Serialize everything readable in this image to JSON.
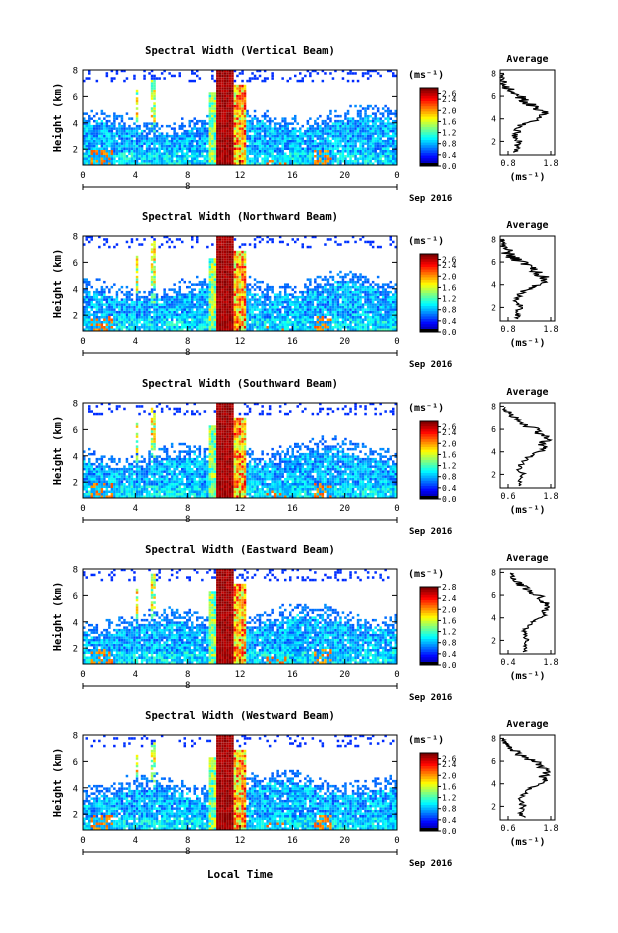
{
  "page": {
    "bottom_xlabel": "Local Time"
  },
  "chart_data": [
    {
      "type": "heatmap",
      "title": "Spectral Width (Vertical Beam)",
      "ylabel": "Height (km)",
      "xticks": [
        "0",
        "4",
        "8",
        "12",
        "16",
        "20",
        "0"
      ],
      "date_tick": "8",
      "date_label": "Sep 2016",
      "xlim": [
        0,
        24
      ],
      "ylim": [
        0.8,
        8
      ],
      "yticks": [
        "2",
        "4",
        "6",
        "8"
      ],
      "colorbar": {
        "unit": "(ms⁻¹)",
        "ticks": [
          "2.6",
          "2.4",
          "2.0",
          "1.6",
          "1.2",
          "0.8",
          "0.4",
          "0.0"
        ],
        "range": [
          0.0,
          2.8
        ]
      },
      "average": {
        "title": "Average",
        "xticks": [
          "0.8",
          "1.8"
        ],
        "xlim": [
          0.8,
          1.8
        ],
        "xlabel": "(ms⁻¹)",
        "yticks": [
          "2",
          "4",
          "6",
          "8"
        ],
        "profile": [
          [
            1.12,
            1.0
          ],
          [
            1.1,
            1.5
          ],
          [
            1.15,
            2.0
          ],
          [
            1.08,
            2.5
          ],
          [
            1.12,
            3.0
          ],
          [
            1.2,
            3.5
          ],
          [
            1.4,
            3.8
          ],
          [
            1.58,
            4.2
          ],
          [
            1.6,
            4.6
          ],
          [
            1.45,
            5.0
          ],
          [
            1.3,
            5.4
          ],
          [
            1.2,
            5.8
          ],
          [
            1.05,
            6.2
          ],
          [
            0.95,
            6.6
          ],
          [
            0.88,
            7.0
          ],
          [
            0.86,
            7.5
          ],
          [
            0.85,
            8.0
          ]
        ]
      }
    },
    {
      "type": "heatmap",
      "title": "Spectral Width (Northward Beam)",
      "ylabel": "Height (km)",
      "xticks": [
        "0",
        "4",
        "8",
        "12",
        "16",
        "20",
        "0"
      ],
      "date_tick": "8",
      "date_label": "Sep 2016",
      "xlim": [
        0,
        24
      ],
      "ylim": [
        0.8,
        8
      ],
      "yticks": [
        "2",
        "4",
        "6",
        "8"
      ],
      "colorbar": {
        "unit": "(ms⁻¹)",
        "ticks": [
          "2.6",
          "2.4",
          "2.0",
          "1.6",
          "1.2",
          "0.8",
          "0.4",
          "0.0"
        ],
        "range": [
          0.0,
          2.8
        ]
      },
      "average": {
        "title": "Average",
        "xticks": [
          "0.8",
          "1.8"
        ],
        "xlim": [
          0.8,
          1.8
        ],
        "xlabel": "(ms⁻¹)",
        "yticks": [
          "2",
          "4",
          "6",
          "8"
        ],
        "profile": [
          [
            1.15,
            1.0
          ],
          [
            1.1,
            1.5
          ],
          [
            1.18,
            2.0
          ],
          [
            1.1,
            2.5
          ],
          [
            1.15,
            3.0
          ],
          [
            1.25,
            3.5
          ],
          [
            1.45,
            3.9
          ],
          [
            1.62,
            4.3
          ],
          [
            1.58,
            4.7
          ],
          [
            1.48,
            5.1
          ],
          [
            1.35,
            5.5
          ],
          [
            1.25,
            5.9
          ],
          [
            1.05,
            6.3
          ],
          [
            0.95,
            6.7
          ],
          [
            0.9,
            7.2
          ],
          [
            0.86,
            7.6
          ],
          [
            0.85,
            8.0
          ]
        ]
      }
    },
    {
      "type": "heatmap",
      "title": "Spectral Width (Southward Beam)",
      "ylabel": "Height (km)",
      "xticks": [
        "0",
        "4",
        "8",
        "12",
        "16",
        "20",
        "0"
      ],
      "date_tick": "8",
      "date_label": "Sep 2016",
      "xlim": [
        0,
        24
      ],
      "ylim": [
        0.8,
        8
      ],
      "yticks": [
        "2",
        "4",
        "6",
        "8"
      ],
      "colorbar": {
        "unit": "(ms⁻¹)",
        "ticks": [
          "2.6",
          "2.4",
          "2.0",
          "1.6",
          "1.2",
          "0.8",
          "0.4",
          "0.0"
        ],
        "range": [
          0.0,
          2.8
        ]
      },
      "average": {
        "title": "Average",
        "xticks": [
          "0.6",
          "1.8"
        ],
        "xlim": [
          0.6,
          1.8
        ],
        "xlabel": "(ms⁻¹)",
        "yticks": [
          "2",
          "4",
          "6",
          "8"
        ],
        "profile": [
          [
            1.05,
            1.0
          ],
          [
            1.0,
            1.5
          ],
          [
            1.1,
            2.0
          ],
          [
            1.02,
            2.5
          ],
          [
            1.08,
            3.0
          ],
          [
            1.2,
            3.5
          ],
          [
            1.4,
            3.9
          ],
          [
            1.6,
            4.3
          ],
          [
            1.55,
            4.7
          ],
          [
            1.65,
            5.1
          ],
          [
            1.5,
            5.5
          ],
          [
            1.45,
            5.9
          ],
          [
            1.2,
            6.3
          ],
          [
            1.0,
            6.8
          ],
          [
            0.85,
            7.2
          ],
          [
            0.75,
            7.6
          ],
          [
            0.7,
            8.0
          ]
        ]
      }
    },
    {
      "type": "heatmap",
      "title": "Spectral Width (Eastward Beam)",
      "ylabel": "Height (km)",
      "xticks": [
        "0",
        "4",
        "8",
        "12",
        "16",
        "20",
        "0"
      ],
      "date_tick": "8",
      "date_label": "Sep 2016",
      "xlim": [
        0,
        24
      ],
      "ylim": [
        0.8,
        8
      ],
      "yticks": [
        "2",
        "4",
        "6",
        "8"
      ],
      "colorbar": {
        "unit": "(ms⁻¹)",
        "ticks": [
          "2.8",
          "2.4",
          "2.0",
          "1.6",
          "1.2",
          "0.8",
          "0.4",
          "0.0"
        ],
        "range": [
          0.0,
          2.8
        ]
      },
      "average": {
        "title": "Average",
        "xticks": [
          "0.4",
          "1.8"
        ],
        "xlim": [
          0.4,
          1.8
        ],
        "xlabel": "(ms⁻¹)",
        "yticks": [
          "2",
          "4",
          "6",
          "8"
        ],
        "profile": [
          [
            1.05,
            1.0
          ],
          [
            1.0,
            1.5
          ],
          [
            1.08,
            2.0
          ],
          [
            1.0,
            2.5
          ],
          [
            1.05,
            3.0
          ],
          [
            1.18,
            3.5
          ],
          [
            1.4,
            3.9
          ],
          [
            1.55,
            4.3
          ],
          [
            1.5,
            4.7
          ],
          [
            1.62,
            5.1
          ],
          [
            1.5,
            5.5
          ],
          [
            1.42,
            5.9
          ],
          [
            1.15,
            6.3
          ],
          [
            0.95,
            6.8
          ],
          [
            0.8,
            7.2
          ],
          [
            0.7,
            7.6
          ],
          [
            0.65,
            8.0
          ]
        ]
      }
    },
    {
      "type": "heatmap",
      "title": "Spectral Width (Westward Beam)",
      "ylabel": "Height (km)",
      "xticks": [
        "0",
        "4",
        "8",
        "12",
        "16",
        "20",
        "0"
      ],
      "date_tick": "8",
      "date_label": "Sep 2016",
      "xlim": [
        0,
        24
      ],
      "ylim": [
        0.8,
        8
      ],
      "yticks": [
        "2",
        "4",
        "6",
        "8"
      ],
      "colorbar": {
        "unit": "(ms⁻¹)",
        "ticks": [
          "2.6",
          "2.4",
          "2.0",
          "1.6",
          "1.2",
          "0.8",
          "0.4",
          "0.0"
        ],
        "range": [
          0.0,
          2.8
        ]
      },
      "average": {
        "title": "Average",
        "xticks": [
          "0.6",
          "1.8"
        ],
        "xlim": [
          0.6,
          1.8
        ],
        "xlabel": "(ms⁻¹)",
        "yticks": [
          "2",
          "4",
          "6",
          "8"
        ],
        "profile": [
          [
            1.1,
            1.0
          ],
          [
            1.05,
            1.5
          ],
          [
            1.12,
            2.0
          ],
          [
            1.05,
            2.5
          ],
          [
            1.1,
            3.0
          ],
          [
            1.22,
            3.5
          ],
          [
            1.42,
            3.9
          ],
          [
            1.6,
            4.3
          ],
          [
            1.55,
            4.7
          ],
          [
            1.62,
            5.1
          ],
          [
            1.5,
            5.5
          ],
          [
            1.4,
            5.9
          ],
          [
            1.15,
            6.3
          ],
          [
            0.95,
            6.8
          ],
          [
            0.8,
            7.2
          ],
          [
            0.72,
            7.6
          ],
          [
            0.68,
            8.0
          ]
        ]
      }
    }
  ]
}
